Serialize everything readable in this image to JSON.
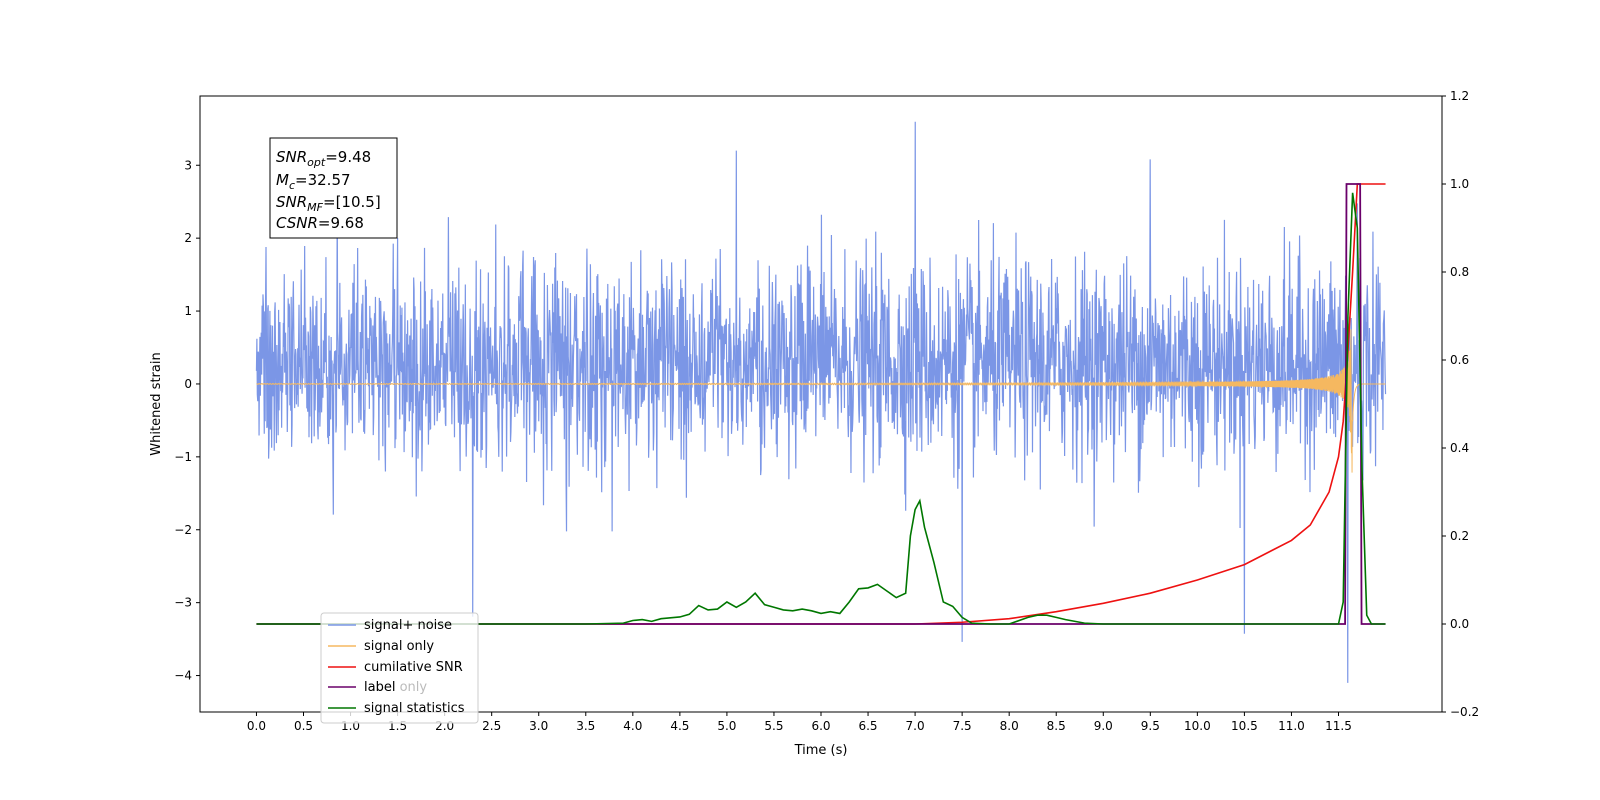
{
  "chart_data": {
    "type": "line",
    "xlabel": "Time (s)",
    "ylabel": "Whitened strain",
    "xlim": [
      -0.6,
      12.6
    ],
    "ylim_left": [
      -4.5,
      3.95
    ],
    "ylim_right": [
      -0.2,
      1.2
    ],
    "x_ticks": [
      "0.0",
      "0.5",
      "1.0",
      "1.5",
      "2.0",
      "2.5",
      "3.0",
      "3.5",
      "4.0",
      "4.5",
      "5.0",
      "5.5",
      "6.0",
      "6.5",
      "7.0",
      "7.5",
      "8.0",
      "8.5",
      "9.0",
      "9.5",
      "10.0",
      "10.5",
      "11.0",
      "11.5"
    ],
    "y_ticks_left": [
      "−4",
      "−3",
      "−2",
      "−1",
      "0",
      "1",
      "2",
      "3"
    ],
    "y_ticks_right": [
      "−0.2",
      "0.0",
      "0.2",
      "0.4",
      "0.6",
      "0.8",
      "1.0",
      "1.2"
    ],
    "annotation": {
      "snr_opt": {
        "base": "SNR",
        "sub": "opt",
        "value": "=9.48"
      },
      "mc": {
        "base": "M",
        "sub": "c",
        "value": "=32.57"
      },
      "snr_mf": {
        "base": "SNR",
        "sub": "MF",
        "value": "=[10.5]"
      },
      "csnr": {
        "base": "CSNR",
        "value": "=9.68"
      }
    },
    "legend": {
      "placement": "lower-left",
      "entries": [
        "signal+ noise",
        "signal only",
        "cumilative SNR",
        "label",
        "label only",
        "signal statistics"
      ]
    },
    "colors": {
      "signal_noise": "#7b96e6",
      "signal_only": "#f5b860",
      "cumulative_snr": "#ee1111",
      "label": "#6a006a",
      "statistics": "#007700"
    },
    "series": [
      {
        "name": "signal+ noise",
        "axis": "left",
        "kind": "noise",
        "x_range": [
          0.0,
          12.0
        ],
        "typical_range": [
          -1.6,
          2.3
        ],
        "extreme_range": [
          -4.1,
          3.6
        ],
        "spikes": [
          [
            1.5,
            2.0
          ],
          [
            2.3,
            -3.2
          ],
          [
            5.1,
            3.2
          ],
          [
            7.0,
            3.6
          ],
          [
            7.5,
            -3.55
          ],
          [
            9.5,
            3.1
          ],
          [
            10.5,
            -3.4
          ],
          [
            11.6,
            -4.1
          ],
          [
            11.7,
            2.5
          ]
        ]
      },
      {
        "name": "signal only",
        "axis": "left",
        "kind": "chirp",
        "x_range": [
          0.0,
          12.0
        ],
        "merger_time": 11.65,
        "peak_amplitude": 1.3
      },
      {
        "name": "cumilative SNR",
        "axis": "right",
        "x": [
          0.0,
          7.0,
          7.5,
          8.0,
          8.5,
          9.0,
          9.5,
          10.0,
          10.5,
          11.0,
          11.2,
          11.4,
          11.5,
          11.55,
          11.6,
          11.65,
          11.7,
          12.0
        ],
        "y": [
          0.0,
          0.0,
          0.004,
          0.012,
          0.028,
          0.047,
          0.07,
          0.1,
          0.135,
          0.19,
          0.225,
          0.3,
          0.38,
          0.46,
          0.62,
          0.8,
          1.0,
          1.0
        ]
      },
      {
        "name": "label",
        "axis": "right",
        "x": [
          0.0,
          11.57,
          11.585,
          11.73,
          11.745,
          12.0
        ],
        "y": [
          0.0,
          0.0,
          1.0,
          1.0,
          0.0,
          0.0
        ]
      },
      {
        "name": "signal statistics",
        "axis": "right",
        "x": [
          0.0,
          3.5,
          3.9,
          4.0,
          4.1,
          4.2,
          4.3,
          4.4,
          4.5,
          4.6,
          4.7,
          4.8,
          4.9,
          5.0,
          5.1,
          5.2,
          5.3,
          5.4,
          5.5,
          5.6,
          5.7,
          5.8,
          5.9,
          6.0,
          6.1,
          6.2,
          6.3,
          6.4,
          6.5,
          6.6,
          6.7,
          6.8,
          6.9,
          6.95,
          7.0,
          7.05,
          7.1,
          7.2,
          7.3,
          7.4,
          7.5,
          7.6,
          7.8,
          8.0,
          8.2,
          8.3,
          8.4,
          8.5,
          8.6,
          8.8,
          9.0,
          11.0,
          11.5,
          11.55,
          11.6,
          11.65,
          11.7,
          11.75,
          11.8,
          11.85,
          11.9,
          12.0
        ],
        "y": [
          0.0,
          0.0,
          0.002,
          0.008,
          0.01,
          0.006,
          0.012,
          0.014,
          0.016,
          0.022,
          0.042,
          0.032,
          0.034,
          0.05,
          0.038,
          0.05,
          0.07,
          0.044,
          0.038,
          0.032,
          0.03,
          0.034,
          0.03,
          0.024,
          0.028,
          0.024,
          0.05,
          0.08,
          0.082,
          0.09,
          0.075,
          0.06,
          0.07,
          0.2,
          0.26,
          0.28,
          0.22,
          0.14,
          0.05,
          0.04,
          0.015,
          0.002,
          0.0,
          0.0,
          0.015,
          0.02,
          0.02,
          0.015,
          0.01,
          0.002,
          0.0,
          0.0,
          0.0,
          0.05,
          0.7,
          0.98,
          0.9,
          0.35,
          0.02,
          0.0,
          0.0,
          0.0
        ]
      }
    ]
  }
}
